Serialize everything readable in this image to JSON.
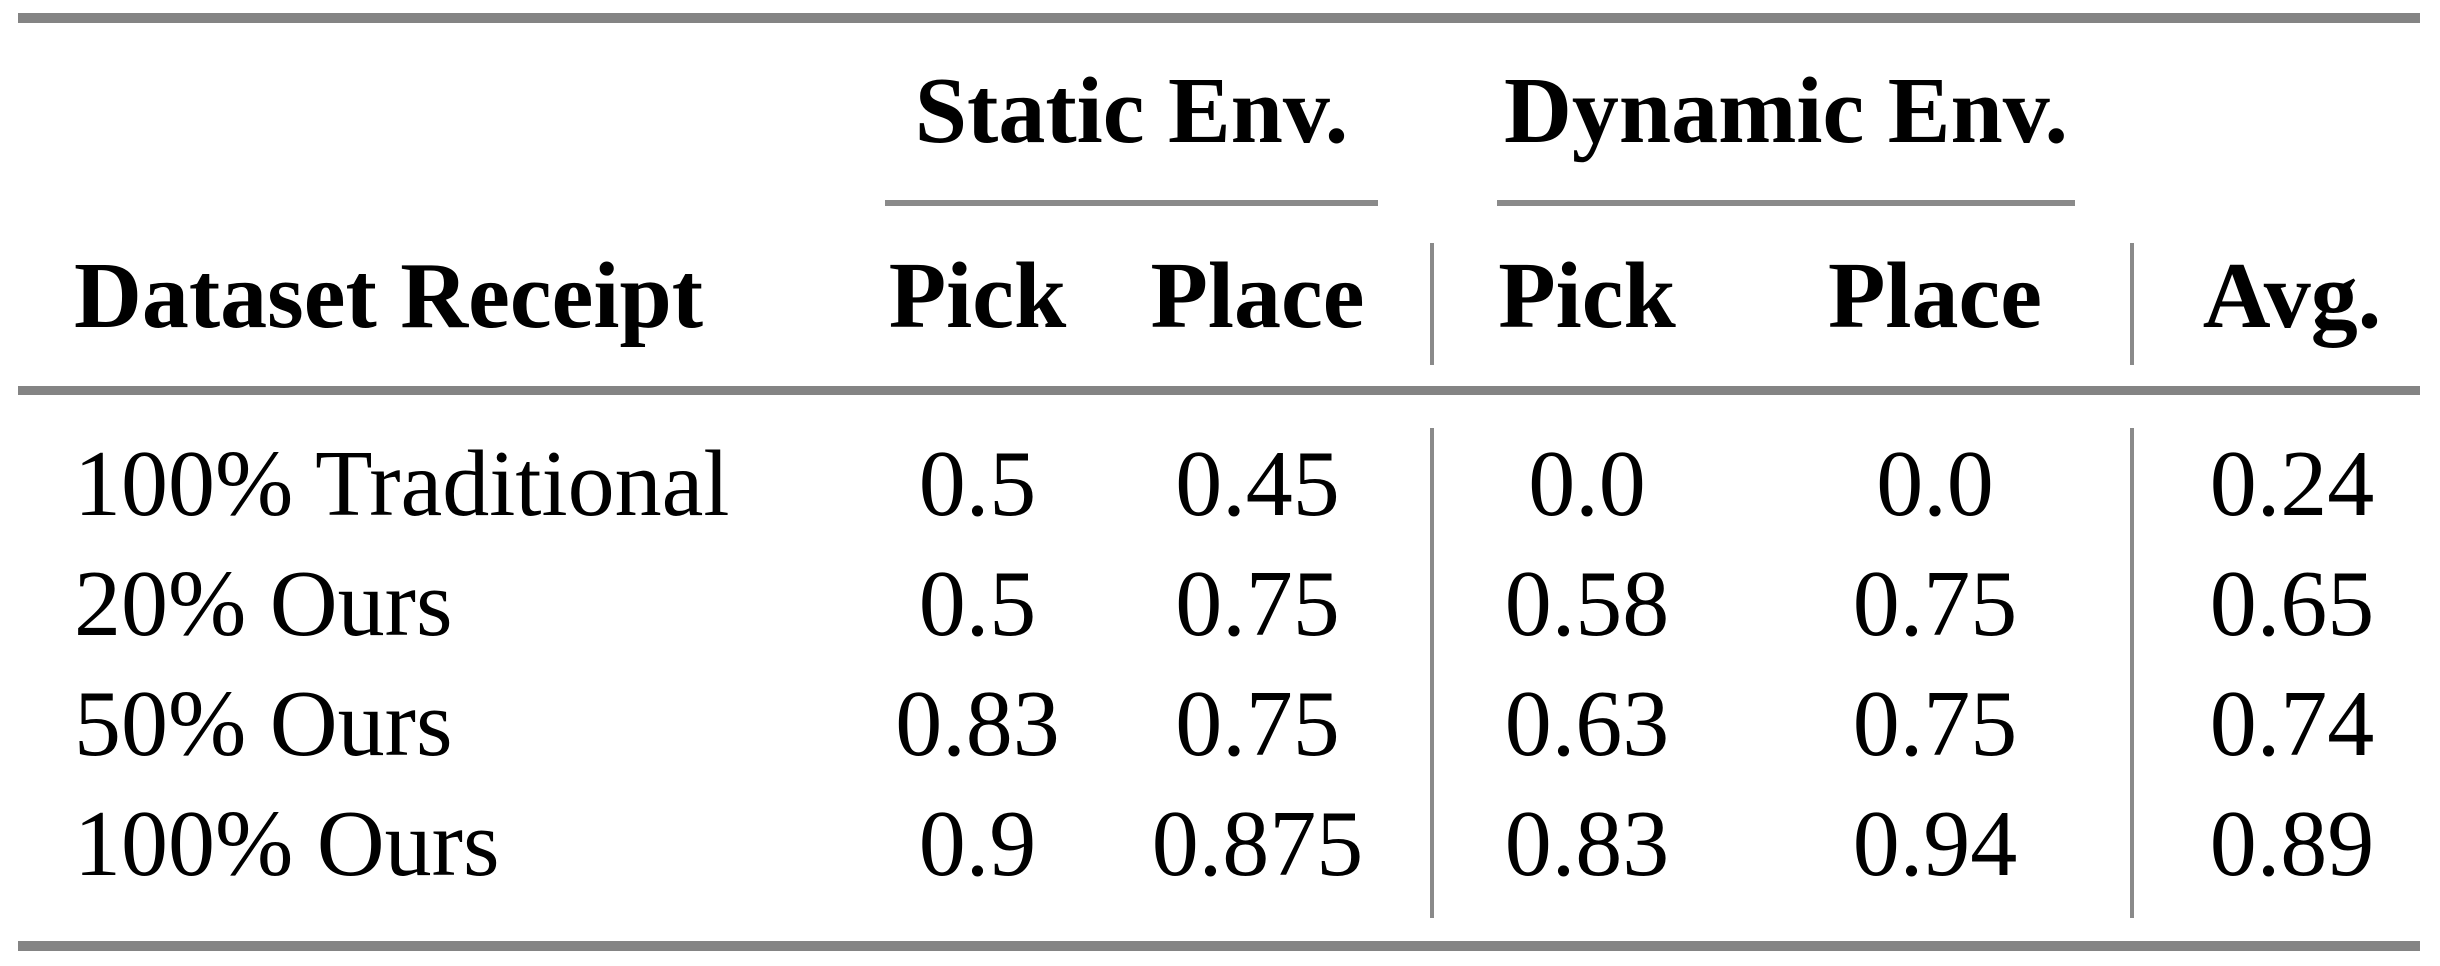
{
  "table": {
    "header": {
      "dataset_receipt": "Dataset Receipt",
      "groups": [
        {
          "label": "Static Env.",
          "columns": [
            "Pick",
            "Place"
          ]
        },
        {
          "label": "Dynamic Env.",
          "columns": [
            "Pick",
            "Place"
          ]
        }
      ],
      "avg": "Avg."
    },
    "rows": [
      {
        "label": "100% Traditional",
        "static_pick": "0.5",
        "static_place": "0.45",
        "dynamic_pick": "0.0",
        "dynamic_place": "0.0",
        "avg": "0.24"
      },
      {
        "label": "20% Ours",
        "static_pick": "0.5",
        "static_place": "0.75",
        "dynamic_pick": "0.58",
        "dynamic_place": "0.75",
        "avg": "0.65"
      },
      {
        "label": "50% Ours",
        "static_pick": "0.83",
        "static_place": "0.75",
        "dynamic_pick": "0.63",
        "dynamic_place": "0.75",
        "avg": "0.74"
      },
      {
        "label": "100% Ours",
        "static_pick": "0.9",
        "static_place": "0.875",
        "dynamic_pick": "0.83",
        "dynamic_place": "0.94",
        "avg": "0.89"
      }
    ],
    "colors": {
      "rule_gray": "#848484",
      "text": "#000000",
      "background": "#ffffff"
    }
  },
  "chart_data": {
    "type": "table",
    "columns": [
      "Dataset Receipt",
      "Static Env. Pick",
      "Static Env. Place",
      "Dynamic Env. Pick",
      "Dynamic Env. Place",
      "Avg."
    ],
    "rows": [
      [
        "100% Traditional",
        0.5,
        0.45,
        0.0,
        0.0,
        0.24
      ],
      [
        "20% Ours",
        0.5,
        0.75,
        0.58,
        0.75,
        0.65
      ],
      [
        "50% Ours",
        0.83,
        0.75,
        0.63,
        0.75,
        0.74
      ],
      [
        "100% Ours",
        0.9,
        0.875,
        0.83,
        0.94,
        0.89
      ]
    ]
  }
}
